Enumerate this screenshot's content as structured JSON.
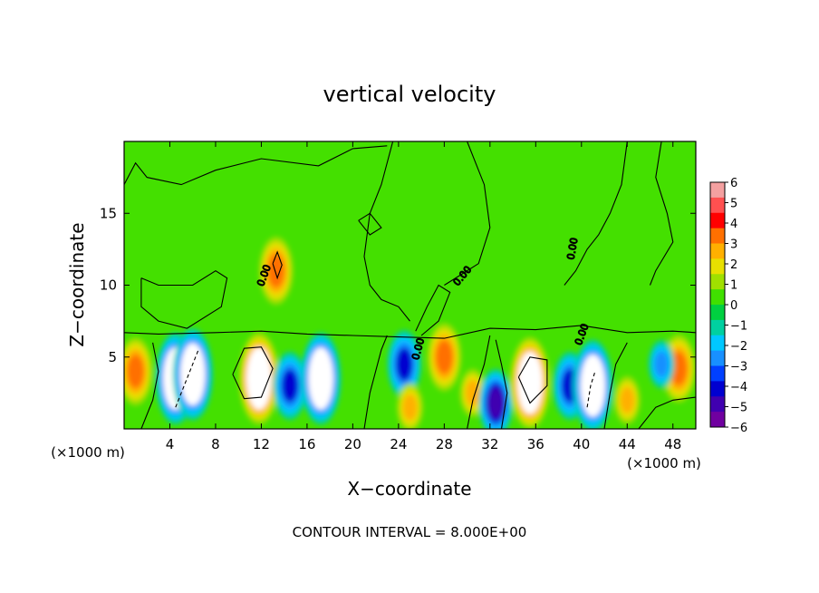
{
  "chart_data": {
    "type": "heatmap",
    "title": "vertical velocity",
    "xlabel": "X−coordinate",
    "ylabel": "Z−coordinate",
    "x_unit_label": "(×1000 m)",
    "y_unit_label": "(×1000 m)",
    "footer": "CONTOUR INTERVAL = 8.000E+00",
    "xlim": [
      0,
      50
    ],
    "ylim": [
      0,
      20
    ],
    "xticks": [
      "4",
      "8",
      "12",
      "16",
      "20",
      "24",
      "28",
      "32",
      "36",
      "40",
      "44",
      "48"
    ],
    "xtick_values": [
      4,
      8,
      12,
      16,
      20,
      24,
      28,
      32,
      36,
      40,
      44,
      48
    ],
    "yticks": [
      "5",
      "10",
      "15"
    ],
    "ytick_values": [
      5,
      10,
      15
    ],
    "contour_label": "0.00",
    "colorbar": {
      "range": [
        -6,
        6
      ],
      "labels": [
        "6",
        "5",
        "4",
        "3",
        "2",
        "1",
        "0",
        "−1",
        "−2",
        "−3",
        "−4",
        "−5",
        "−6"
      ],
      "colors": [
        "#f4a0a0",
        "#ff5050",
        "#ff0000",
        "#ff7000",
        "#ffb000",
        "#e8e000",
        "#a0e000",
        "#40e000",
        "#00d040",
        "#00d0a0",
        "#00c8ff",
        "#1890ff",
        "#0040ff",
        "#0000d0",
        "#4000b0",
        "#7000a0"
      ]
    },
    "features": [
      {
        "x": 1.0,
        "z": 4.0,
        "value": 4
      },
      {
        "x": 4.5,
        "z": 3.5,
        "value": -6
      },
      {
        "x": 6.0,
        "z": 3.8,
        "value": -6
      },
      {
        "x": 11.8,
        "z": 3.5,
        "value": 6
      },
      {
        "x": 14.5,
        "z": 3.0,
        "value": -4
      },
      {
        "x": 17.2,
        "z": 3.5,
        "value": -6
      },
      {
        "x": 13.3,
        "z": 11.0,
        "value": 4
      },
      {
        "x": 24.5,
        "z": 4.5,
        "value": -4
      },
      {
        "x": 25.0,
        "z": 1.5,
        "value": 3
      },
      {
        "x": 28.0,
        "z": 5.0,
        "value": 4
      },
      {
        "x": 30.5,
        "z": 2.5,
        "value": 3
      },
      {
        "x": 32.5,
        "z": 1.8,
        "value": -5
      },
      {
        "x": 35.5,
        "z": 3.2,
        "value": 6
      },
      {
        "x": 39.0,
        "z": 3.0,
        "value": -4
      },
      {
        "x": 41.0,
        "z": 3.0,
        "value": -6
      },
      {
        "x": 44.0,
        "z": 2.0,
        "value": 3
      },
      {
        "x": 48.5,
        "z": 4.2,
        "value": 4
      },
      {
        "x": 47.0,
        "z": 4.5,
        "value": -3
      }
    ]
  }
}
